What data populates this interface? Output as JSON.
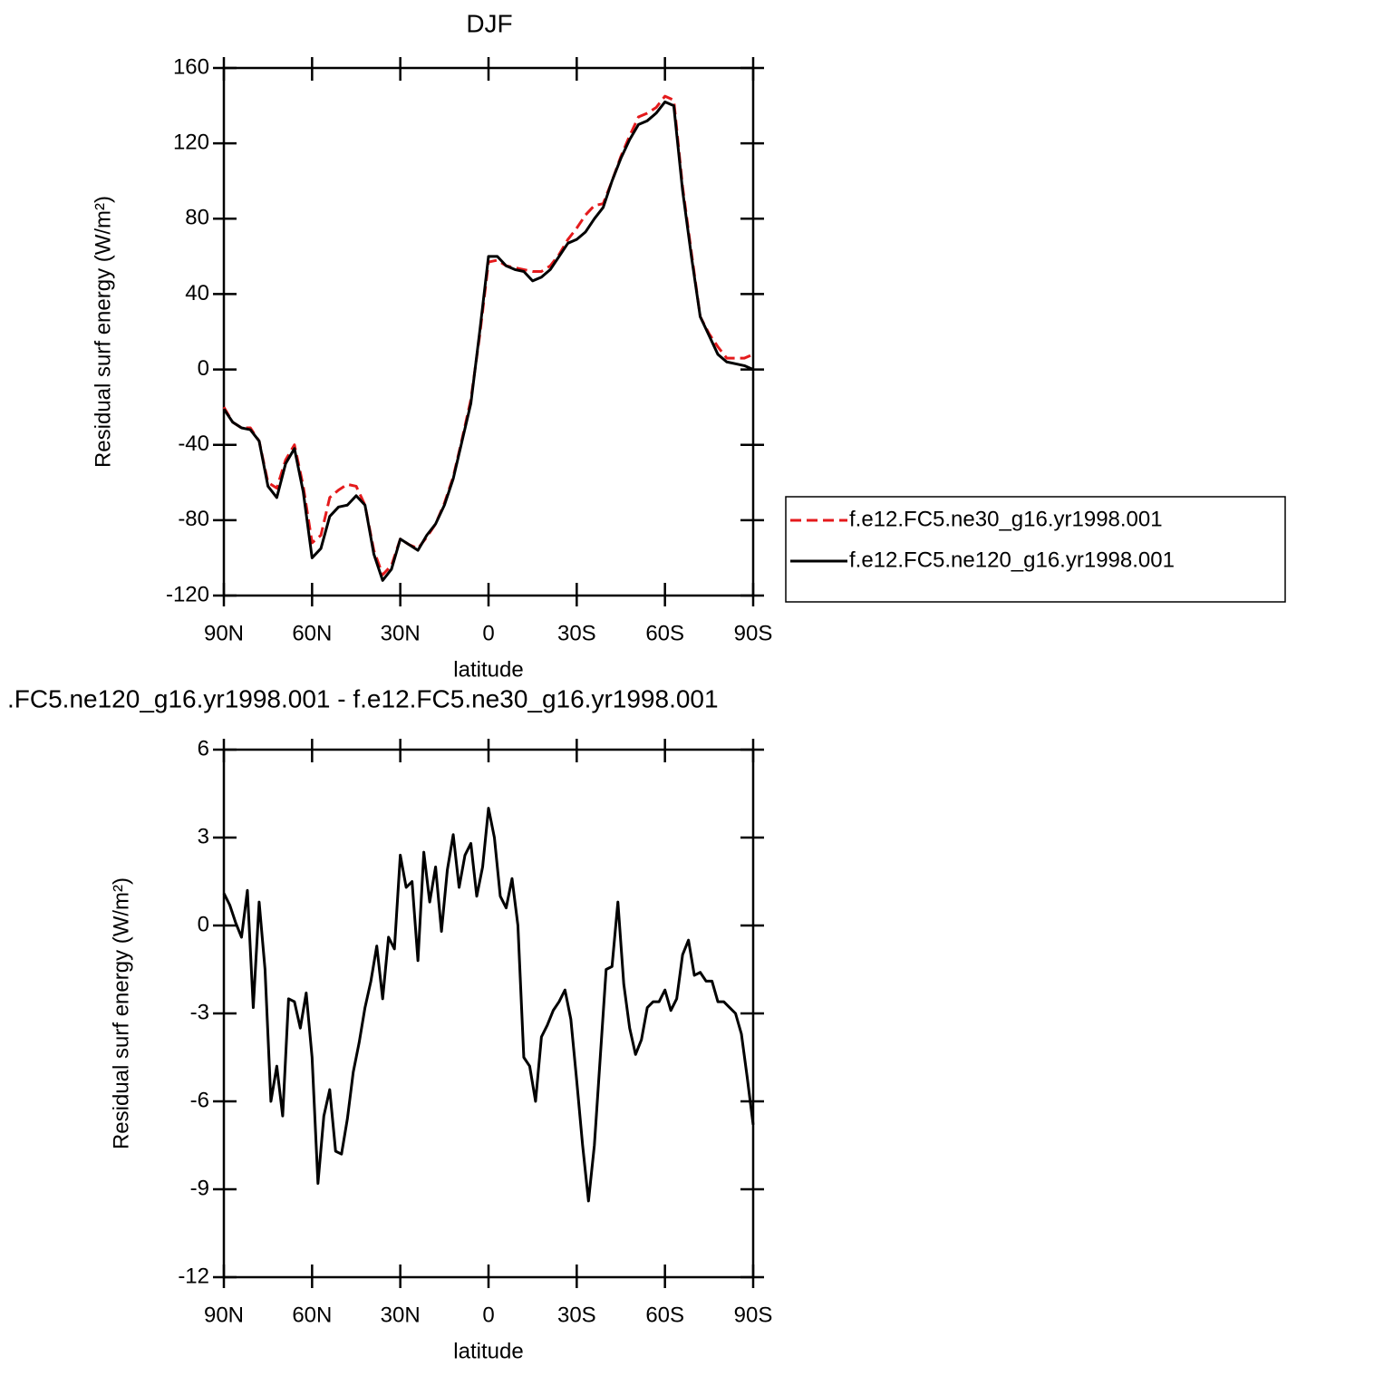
{
  "chart_data": [
    {
      "type": "line",
      "title": "DJF",
      "xlabel": "latitude",
      "ylabel": "Residual surf energy (W/m²)",
      "x": [
        90,
        87,
        84,
        81,
        78,
        75,
        72,
        69,
        66,
        63,
        60,
        57,
        54,
        51,
        48,
        45,
        42,
        39,
        36,
        33,
        30,
        27,
        24,
        21,
        18,
        15,
        12,
        9,
        6,
        3,
        0,
        -3,
        -6,
        -9,
        -12,
        -15,
        -18,
        -21,
        -24,
        -27,
        -30,
        -33,
        -36,
        -39,
        -42,
        -45,
        -48,
        -51,
        -54,
        -57,
        -60,
        -63,
        -66,
        -69,
        -72,
        -75,
        -78,
        -81,
        -84,
        -87,
        -90
      ],
      "series": [
        {
          "name": "f.e12.FC5.ne30_g16.yr1998.001",
          "color": "#e41a1c",
          "linestyle": "dashed",
          "values": [
            -20,
            -28,
            -31,
            -31,
            -38,
            -60,
            -63,
            -48,
            -40,
            -62,
            -92,
            -88,
            -68,
            -64,
            -61,
            -62,
            -72,
            -96,
            -109,
            -104,
            -90,
            -93,
            -95,
            -89,
            -82,
            -71,
            -57,
            -37,
            -16,
            18,
            57,
            58,
            55,
            54,
            53,
            52,
            52,
            55,
            61,
            69,
            75,
            82,
            87,
            88,
            100,
            113,
            124,
            134,
            136,
            139,
            145,
            143,
            97,
            62,
            28,
            19,
            12,
            6,
            6,
            6,
            8
          ]
        },
        {
          "name": "f.e12.FC5.ne120_g16.yr1998.001",
          "color": "#000000",
          "linestyle": "solid",
          "values": [
            -21,
            -28,
            -31,
            -32,
            -38,
            -62,
            -68,
            -50,
            -42,
            -65,
            -100,
            -95,
            -78,
            -73,
            -72,
            -67,
            -72,
            -98,
            -112,
            -106,
            -90,
            -93,
            -96,
            -88,
            -82,
            -72,
            -58,
            -38,
            -18,
            20,
            60,
            60,
            55,
            53,
            52,
            47,
            49,
            53,
            60,
            67,
            69,
            73,
            80,
            86,
            100,
            112,
            122,
            130,
            132,
            136,
            142,
            140,
            95,
            60,
            28,
            18,
            8,
            4,
            3,
            2,
            0
          ]
        }
      ],
      "xlim": [
        90,
        -90
      ],
      "xticks": [
        {
          "value": 90,
          "label": "90N"
        },
        {
          "value": 60,
          "label": "60N"
        },
        {
          "value": 30,
          "label": "30N"
        },
        0,
        {
          "value": -30,
          "label": "30S"
        },
        {
          "value": -60,
          "label": "60S"
        },
        {
          "value": -90,
          "label": "90S"
        }
      ],
      "ylim": [
        -120,
        160
      ],
      "yticks": [
        -120,
        -80,
        -40,
        0,
        40,
        80,
        120,
        160
      ],
      "legend": "right"
    },
    {
      "type": "line",
      "title": ".FC5.ne120_g16.yr1998.001 - f.e12.FC5.ne30_g16.yr1998.001",
      "xlabel": "latitude",
      "ylabel": "Residual surf energy (W/m²)",
      "x": [
        90,
        88,
        86,
        84,
        82,
        80,
        78,
        76,
        74,
        72,
        70,
        68,
        66,
        64,
        62,
        60,
        58,
        56,
        54,
        52,
        50,
        48,
        46,
        44,
        42,
        40,
        38,
        36,
        34,
        32,
        30,
        28,
        26,
        24,
        22,
        20,
        18,
        16,
        14,
        12,
        10,
        8,
        6,
        4,
        2,
        0,
        -2,
        -4,
        -6,
        -8,
        -10,
        -12,
        -14,
        -16,
        -18,
        -20,
        -22,
        -24,
        -26,
        -28,
        -30,
        -32,
        -34,
        -36,
        -38,
        -40,
        -42,
        -44,
        -46,
        -48,
        -50,
        -52,
        -54,
        -56,
        -58,
        -60,
        -62,
        -64,
        -66,
        -68,
        -70,
        -72,
        -74,
        -76,
        -78,
        -80,
        -82,
        -84,
        -86,
        -88,
        -90
      ],
      "series": [
        {
          "color": "#000000",
          "linestyle": "solid",
          "values": [
            1.1,
            0.7,
            0.1,
            -0.4,
            1.2,
            -2.8,
            0.8,
            -1.5,
            -6.0,
            -4.8,
            -6.5,
            -2.5,
            -2.6,
            -3.5,
            -2.3,
            -4.5,
            -8.8,
            -6.5,
            -5.6,
            -7.7,
            -7.8,
            -6.6,
            -5.0,
            -4.0,
            -2.8,
            -1.9,
            -0.7,
            -2.5,
            -0.4,
            -0.8,
            2.4,
            1.3,
            1.5,
            -1.2,
            2.5,
            0.8,
            2.0,
            -0.2,
            1.9,
            3.1,
            1.3,
            2.4,
            2.8,
            1.0,
            2.0,
            4.0,
            3.0,
            1.0,
            0.6,
            1.6,
            0.0,
            -4.5,
            -4.8,
            -6.0,
            -3.8,
            -3.4,
            -2.9,
            -2.6,
            -2.2,
            -3.2,
            -5.3,
            -7.5,
            -9.4,
            -7.5,
            -4.5,
            -1.5,
            -1.4,
            0.8,
            -2.0,
            -3.5,
            -4.4,
            -3.9,
            -2.8,
            -2.6,
            -2.6,
            -2.2,
            -2.9,
            -2.5,
            -1.0,
            -0.5,
            -1.7,
            -1.6,
            -1.9,
            -1.9,
            -2.6,
            -2.6,
            -2.8,
            -3.0,
            -3.7,
            -5.2,
            -6.8
          ]
        }
      ],
      "xlim": [
        90,
        -90
      ],
      "xticks": [
        {
          "value": 90,
          "label": "90N"
        },
        {
          "value": 60,
          "label": "60N"
        },
        {
          "value": 30,
          "label": "30N"
        },
        0,
        {
          "value": -30,
          "label": "30S"
        },
        {
          "value": -60,
          "label": "60S"
        },
        {
          "value": -90,
          "label": "90S"
        }
      ],
      "ylim": [
        -12,
        6
      ],
      "yticks": [
        -12,
        -9,
        -6,
        -3,
        0,
        3,
        6
      ]
    }
  ]
}
